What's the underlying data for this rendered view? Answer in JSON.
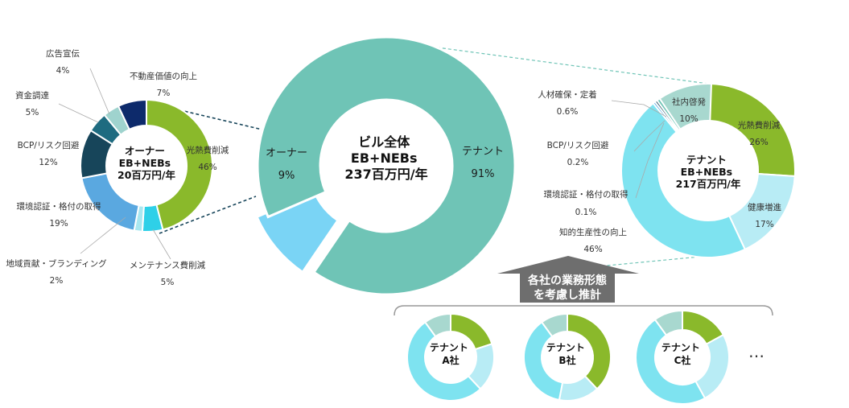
{
  "colors": {
    "navy": "#0d2a6b",
    "teal_dark": "#1e6b80",
    "slate": "#17455a",
    "teal_light": "#9fd3ce",
    "green": "#8ab92b",
    "cyan": "#2ed0e8",
    "sky": "#5aa8e0",
    "light_blue": "#7ad4f5",
    "pale_cyan": "#b8ecf5",
    "bright_cyan": "#7ee3f0",
    "mint": "#6fc4b6",
    "gray_mint": "#a8d8cf",
    "gray": "#6e6e6e"
  },
  "chart_data": [
    {
      "type": "pie",
      "subtype": "donut",
      "id": "owner",
      "title": "オーナー\nEB+NEBs\n20百万円/年",
      "slices": [
        {
          "label": "光熱費削減",
          "value": 46,
          "text": "46%",
          "color": "#8ab92b"
        },
        {
          "label": "メンテナンス費削減",
          "value": 5,
          "text": "5%",
          "color": "#2ed0e8"
        },
        {
          "label": "地域貢献・ブランディング",
          "value": 2,
          "text": "2%",
          "color": "#a8e7f0"
        },
        {
          "label": "環境認証・格付の取得",
          "value": 19,
          "text": "19%",
          "color": "#5aa8e0"
        },
        {
          "label": "BCP/リスク回避",
          "value": 12,
          "text": "12%",
          "color": "#17455a"
        },
        {
          "label": "資金調達",
          "value": 5,
          "text": "5%",
          "color": "#1e6b80"
        },
        {
          "label": "広告宣伝",
          "value": 4,
          "text": "4%",
          "color": "#9fd3ce"
        },
        {
          "label": "不動産価値の向上",
          "value": 7,
          "text": "7%",
          "color": "#0d2a6b"
        }
      ]
    },
    {
      "type": "pie",
      "subtype": "donut",
      "id": "building",
      "title": "ビル全体\nEB+NEBs\n237百万円/年",
      "slices": [
        {
          "label": "オーナー",
          "value": 9,
          "text": "9%",
          "color": "#7ad4f5"
        },
        {
          "label": "テナント",
          "value": 91,
          "text": "91%",
          "color": "#6fc4b6"
        }
      ]
    },
    {
      "type": "pie",
      "subtype": "donut",
      "id": "tenant",
      "title": "テナント\nEB+NEBs\n217百万円/年",
      "slices": [
        {
          "label": "光熱費削減",
          "value": 26,
          "text": "26%",
          "color": "#8ab92b"
        },
        {
          "label": "健康増進",
          "value": 17,
          "text": "17%",
          "color": "#b8ecf5"
        },
        {
          "label": "知的生産性の向上",
          "value": 46,
          "text": "46%",
          "color": "#7ee3f0"
        },
        {
          "label": "環境認証・格付の取得",
          "value": 0.1,
          "text": "0.1%",
          "color": "#5aa8e0"
        },
        {
          "label": "BCP/リスク回避",
          "value": 0.2,
          "text": "0.2%",
          "color": "#17455a"
        },
        {
          "label": "人材確保・定着",
          "value": 0.6,
          "text": "0.6%",
          "color": "#6fc4b6"
        },
        {
          "label": "社内啓発",
          "value": 10,
          "text": "10%",
          "color": "#a8d8cf"
        }
      ]
    },
    {
      "type": "pie",
      "subtype": "donut",
      "id": "tenant_a",
      "title": "テナント\nA社",
      "slices": [
        {
          "value": 20,
          "color": "#8ab92b"
        },
        {
          "value": 18,
          "color": "#b8ecf5"
        },
        {
          "value": 52,
          "color": "#7ee3f0"
        },
        {
          "value": 10,
          "color": "#a8d8cf"
        }
      ]
    },
    {
      "type": "pie",
      "subtype": "donut",
      "id": "tenant_b",
      "title": "テナント\nB社",
      "slices": [
        {
          "value": 38,
          "color": "#8ab92b"
        },
        {
          "value": 15,
          "color": "#b8ecf5"
        },
        {
          "value": 37,
          "color": "#7ee3f0"
        },
        {
          "value": 10,
          "color": "#a8d8cf"
        }
      ]
    },
    {
      "type": "pie",
      "subtype": "donut",
      "id": "tenant_c",
      "title": "テナント\nC社",
      "slices": [
        {
          "value": 17,
          "color": "#8ab92b"
        },
        {
          "value": 25,
          "color": "#b8ecf5"
        },
        {
          "value": 48,
          "color": "#7ee3f0"
        },
        {
          "value": 10,
          "color": "#a8d8cf"
        }
      ]
    }
  ],
  "callout": {
    "line1": "各社の業務形態",
    "line2": "を考慮し推計"
  },
  "more": "…"
}
